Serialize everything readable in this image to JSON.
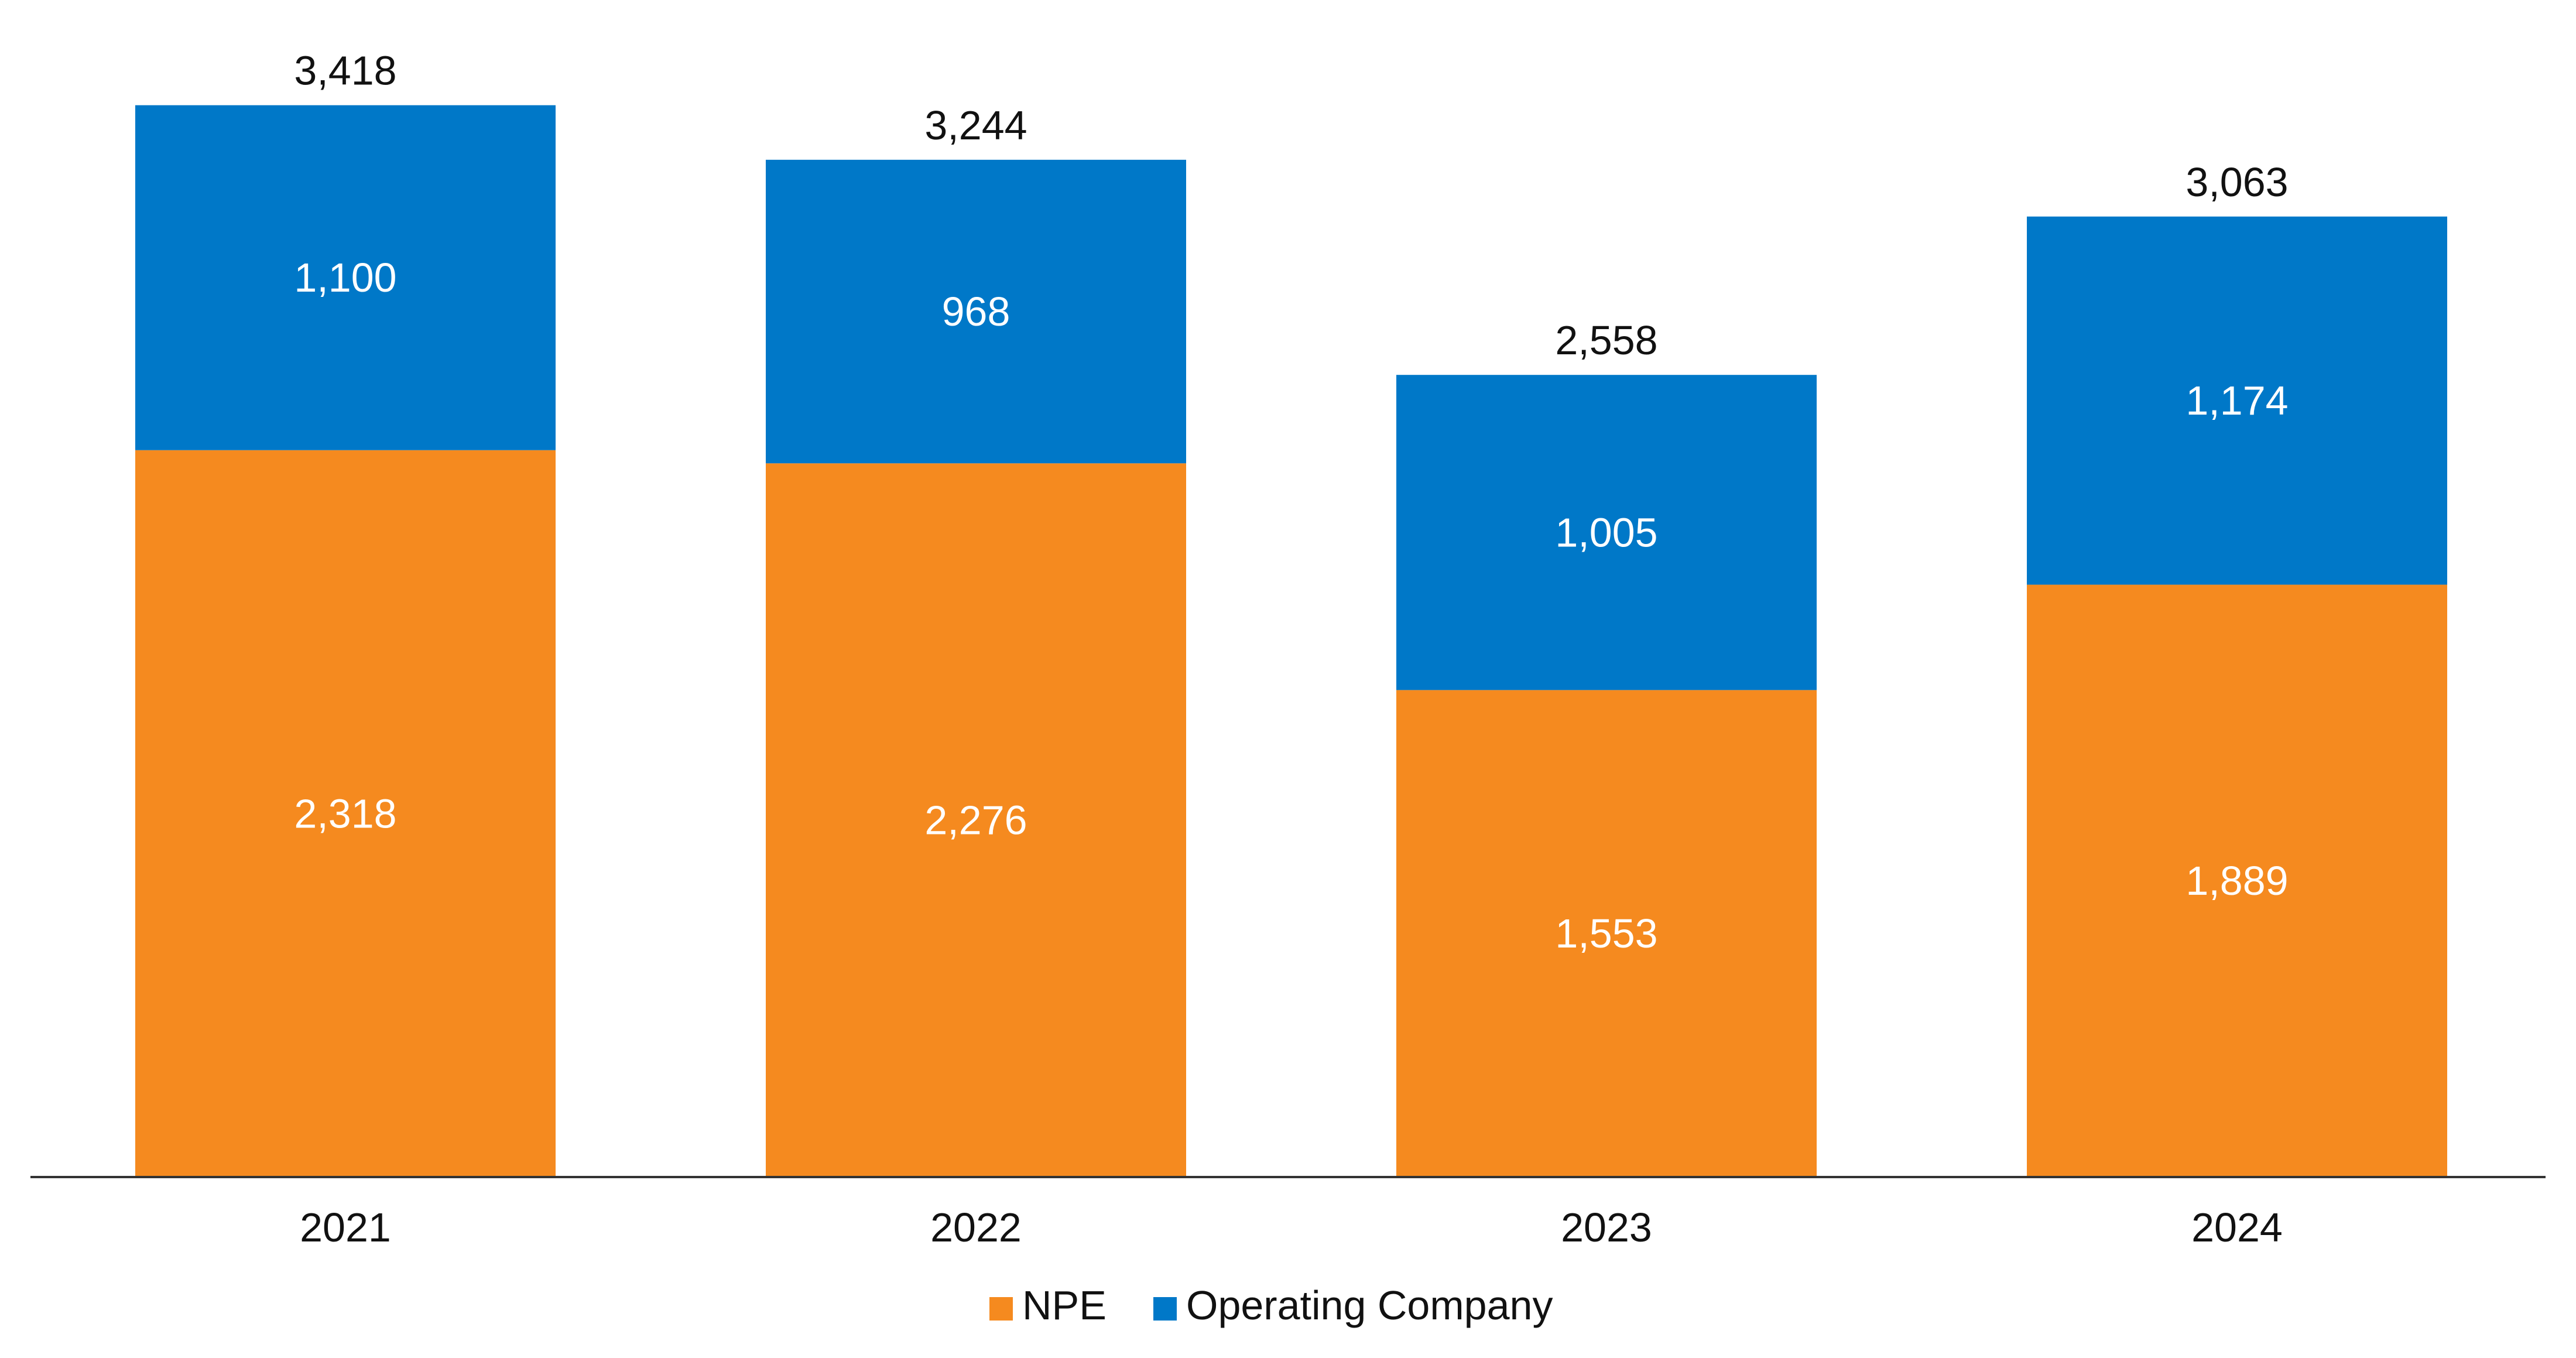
{
  "chart_data": {
    "type": "bar",
    "stacked": true,
    "categories": [
      "2021",
      "2022",
      "2023",
      "2024"
    ],
    "series": [
      {
        "name": "NPE",
        "color": "#F58A1F",
        "values": [
          2318,
          2276,
          1553,
          1889
        ]
      },
      {
        "name": "Operating Company",
        "color": "#0078C8",
        "values": [
          1100,
          968,
          1005,
          1174
        ]
      }
    ],
    "totals": [
      3418,
      3244,
      2558,
      3063
    ],
    "ylim": [
      0,
      3600
    ],
    "grid": false,
    "legend_position": "bottom-center",
    "data_labels": true
  }
}
